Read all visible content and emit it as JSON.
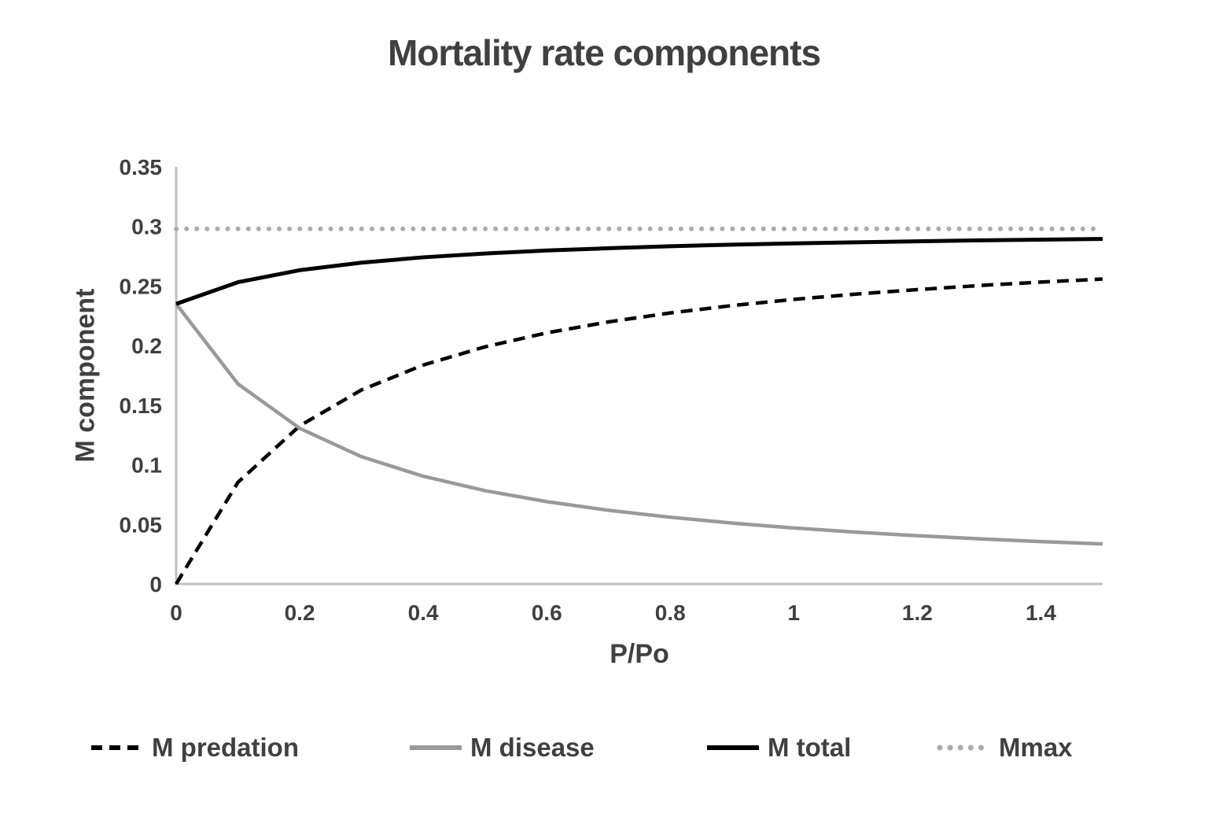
{
  "chart_data": {
    "type": "line",
    "title": "Mortality rate components",
    "xlabel": "P/Po",
    "ylabel": "M component",
    "xlim": [
      0,
      1.5
    ],
    "ylim": [
      0,
      0.35
    ],
    "grid": false,
    "legend_position": "bottom",
    "colors": {
      "text": "#404040",
      "axis_line": "#bfbfbf",
      "background": "#ffffff"
    },
    "x_ticks": [
      {
        "v": 0,
        "label": "0"
      },
      {
        "v": 0.2,
        "label": "0.2"
      },
      {
        "v": 0.4,
        "label": "0.4"
      },
      {
        "v": 0.6,
        "label": "0.6"
      },
      {
        "v": 0.8,
        "label": "0.8"
      },
      {
        "v": 1,
        "label": "1"
      },
      {
        "v": 1.2,
        "label": "1.2"
      },
      {
        "v": 1.4,
        "label": "1.4"
      }
    ],
    "y_ticks": [
      {
        "v": 0,
        "label": "0"
      },
      {
        "v": 0.05,
        "label": "0.05"
      },
      {
        "v": 0.1,
        "label": "0.1"
      },
      {
        "v": 0.15,
        "label": "0.15"
      },
      {
        "v": 0.2,
        "label": "0.2"
      },
      {
        "v": 0.25,
        "label": "0.25"
      },
      {
        "v": 0.3,
        "label": "0.3"
      },
      {
        "v": 0.35,
        "label": "0.35"
      }
    ],
    "x": [
      0,
      0.1,
      0.2,
      0.3,
      0.4,
      0.5,
      0.6,
      0.7,
      0.8,
      0.9,
      1.0,
      1.1,
      1.2,
      1.3,
      1.4,
      1.5
    ],
    "series": [
      {
        "name": "M predation",
        "color": "#000000",
        "style": "dashed",
        "width": 4.5,
        "values": [
          0,
          0.0853,
          0.1327,
          0.1628,
          0.1837,
          0.199,
          0.2107,
          0.2199,
          0.2274,
          0.2336,
          0.2388,
          0.2432,
          0.247,
          0.2504,
          0.2533,
          0.2559
        ]
      },
      {
        "name": "M disease",
        "color": "#999999",
        "style": "solid",
        "width": 4.5,
        "values": [
          0.235,
          0.1679,
          0.1306,
          0.1068,
          0.0904,
          0.0783,
          0.0691,
          0.0618,
          0.056,
          0.0511,
          0.047,
          0.0435,
          0.0405,
          0.0379,
          0.0356,
          0.0336
        ]
      },
      {
        "name": "M total",
        "color": "#000000",
        "style": "solid",
        "width": 5,
        "values": [
          0.235,
          0.2532,
          0.2633,
          0.2696,
          0.2741,
          0.2773,
          0.2798,
          0.2817,
          0.2834,
          0.2847,
          0.2858,
          0.2867,
          0.2875,
          0.2883,
          0.2889,
          0.2895
        ]
      },
      {
        "name": "Mmax",
        "color": "#ababab",
        "style": "dotted",
        "width": 6,
        "values": [
          0.298,
          0.298,
          0.298,
          0.298,
          0.298,
          0.298,
          0.298,
          0.298,
          0.298,
          0.298,
          0.298,
          0.298,
          0.298,
          0.298,
          0.298,
          0.298
        ]
      }
    ]
  }
}
